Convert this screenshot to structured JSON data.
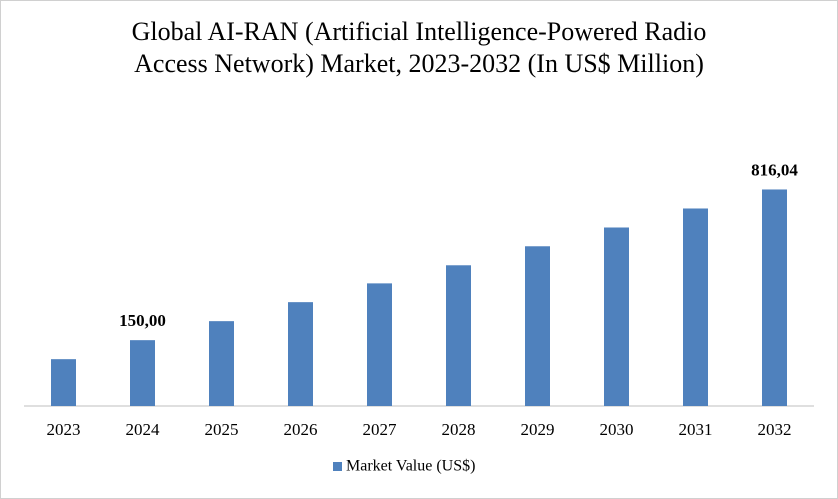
{
  "chart_data": {
    "type": "bar",
    "title": "Global AI-RAN (Artificial Intelligence-Powered Radio Access Network) Market, 2023-2032 (In US$ Million)",
    "categories": [
      "2023",
      "2024",
      "2025",
      "2026",
      "2027",
      "2028",
      "2029",
      "2030",
      "2031",
      "2032"
    ],
    "series": [
      {
        "name": "Market Value (US$)",
        "color": "#4f81bd",
        "values": [
          66,
          150,
          234,
          318,
          401,
          481,
          565,
          648,
          732,
          816.04
        ],
        "value_labels": [
          null,
          "150,00",
          null,
          null,
          null,
          null,
          null,
          null,
          null,
          "816,04"
        ]
      }
    ],
    "ylim": [
      -141,
      880
    ]
  }
}
